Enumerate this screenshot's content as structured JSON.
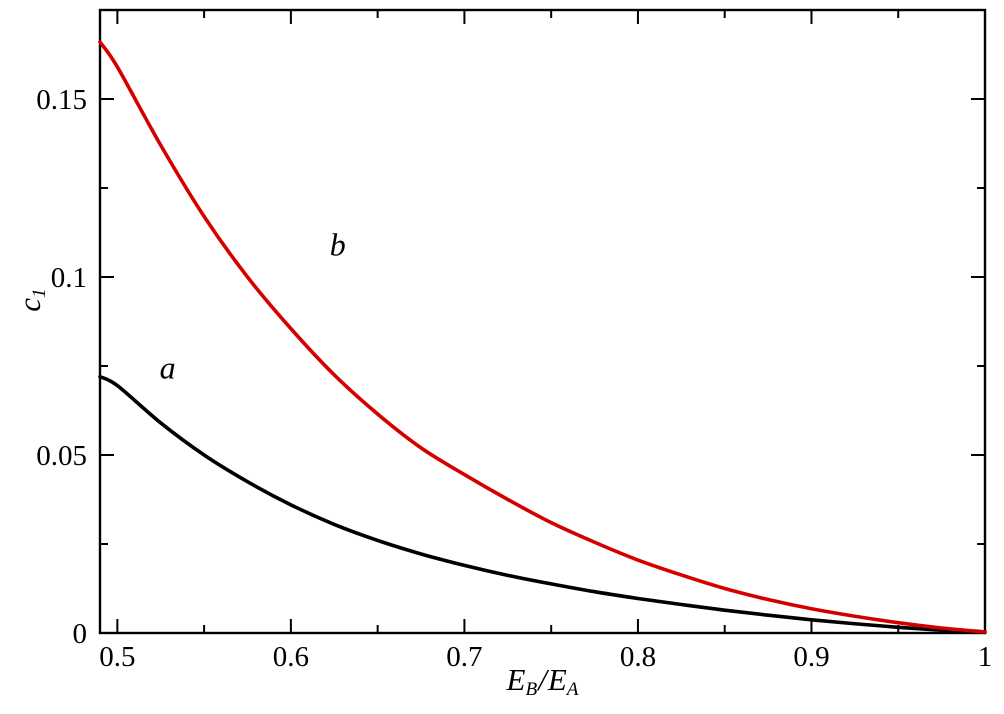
{
  "chart_data": {
    "type": "line",
    "title": "",
    "xlabel": {
      "v1": "E",
      "s1": "B",
      "sep": "/",
      "v2": "E",
      "s2": "A"
    },
    "ylabel": {
      "v": "c",
      "s": "1"
    },
    "xlim": [
      0.49,
      1.0
    ],
    "ylim": [
      0,
      0.175
    ],
    "grid": false,
    "legend_position": "none",
    "background_color": "#ffffff",
    "frame_color": "#000000",
    "x_major_ticks": [
      0.5,
      0.6,
      0.7,
      0.8,
      0.9,
      1.0
    ],
    "x_major_labels": [
      "0.5",
      "0.6",
      "0.7",
      "0.8",
      "0.9",
      "1"
    ],
    "x_minor_ticks": [
      0.55,
      0.65,
      0.75,
      0.85,
      0.95
    ],
    "y_major_ticks": [
      0,
      0.05,
      0.1,
      0.15
    ],
    "y_major_labels": [
      "0",
      "0.05",
      "0.1",
      "0.15"
    ],
    "y_minor_ticks": [
      0.025,
      0.075,
      0.125,
      0.175
    ],
    "series": [
      {
        "name": "a",
        "color": "#000000",
        "label": "a",
        "label_pos": {
          "x": 0.529,
          "y": 0.0715
        },
        "x": [
          0.49,
          0.5,
          0.525,
          0.55,
          0.575,
          0.6,
          0.625,
          0.65,
          0.675,
          0.7,
          0.725,
          0.75,
          0.775,
          0.8,
          0.825,
          0.85,
          0.875,
          0.9,
          0.925,
          0.95,
          0.975,
          1.0
        ],
        "y": [
          0.072,
          0.0695,
          0.059,
          0.05,
          0.0425,
          0.036,
          0.0305,
          0.026,
          0.0222,
          0.019,
          0.0162,
          0.0138,
          0.0116,
          0.0097,
          0.008,
          0.0064,
          0.005,
          0.0037,
          0.0026,
          0.0016,
          0.0008,
          0.0002
        ]
      },
      {
        "name": "b",
        "color": "#d40000",
        "label": "b",
        "label_pos": {
          "x": 0.627,
          "y": 0.106
        },
        "x": [
          0.49,
          0.5,
          0.525,
          0.55,
          0.575,
          0.6,
          0.625,
          0.65,
          0.675,
          0.7,
          0.725,
          0.75,
          0.775,
          0.8,
          0.825,
          0.85,
          0.875,
          0.9,
          0.925,
          0.95,
          0.975,
          1.0
        ],
        "y": [
          0.166,
          0.159,
          0.137,
          0.117,
          0.1,
          0.0855,
          0.0725,
          0.0615,
          0.052,
          0.0445,
          0.0375,
          0.031,
          0.0255,
          0.0205,
          0.0163,
          0.0125,
          0.0094,
          0.0068,
          0.0047,
          0.0029,
          0.0014,
          0.0003
        ]
      }
    ]
  }
}
